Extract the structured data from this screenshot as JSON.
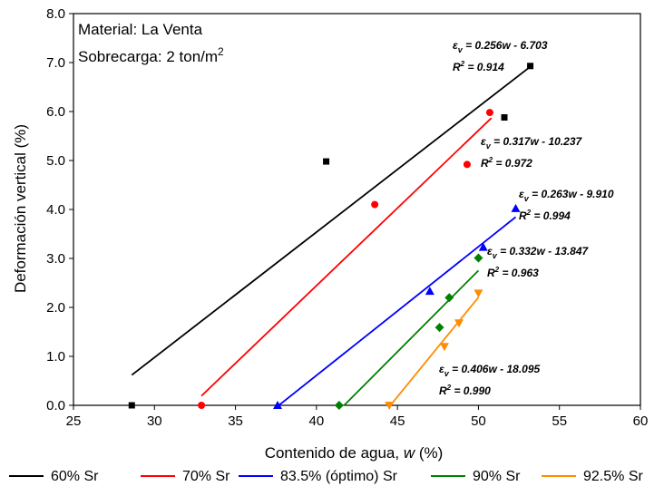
{
  "chart_data": {
    "type": "scatter",
    "xlabel_main": "Contenido de agua, ",
    "xlabel_var": "w",
    "xlabel_unit": " (%)",
    "ylabel": "Deformación vertical (%)",
    "xlim": [
      25,
      60
    ],
    "ylim": [
      0,
      8
    ],
    "x_ticks": [
      "25",
      "30",
      "35",
      "40",
      "45",
      "50",
      "55",
      "60"
    ],
    "y_ticks": [
      "0.0",
      "1.0",
      "2.0",
      "3.0",
      "4.0",
      "5.0",
      "6.0",
      "7.0",
      "8.0"
    ],
    "info_material": "Material: La Venta",
    "info_load_prefix": "Sobrecarga: 2 ton/m",
    "info_load_exp": "2",
    "legend_placement": "bottom",
    "series": [
      {
        "name": "60% Sr",
        "color": "#000000",
        "marker": "square",
        "points": [
          [
            28.6,
            0.0
          ],
          [
            40.6,
            4.98
          ],
          [
            51.6,
            5.88
          ],
          [
            53.2,
            6.93
          ]
        ],
        "fit": {
          "x0": 28.6,
          "x1": 53.2,
          "slope": 0.256,
          "intercept": -6.703
        },
        "equation": "ε",
        "eq_sub": "v",
        "eq_rest": " = 0.256w - 6.703",
        "r2_prefix": "R",
        "r2_sup": "2",
        "r2_rest": " = 0.914"
      },
      {
        "name": "70% Sr",
        "color": "#ff0000",
        "marker": "circle",
        "points": [
          [
            32.9,
            0.0
          ],
          [
            43.6,
            4.1
          ],
          [
            49.3,
            4.92
          ],
          [
            50.7,
            5.98
          ]
        ],
        "fit": {
          "x0": 32.9,
          "x1": 50.8,
          "slope": 0.317,
          "intercept": -10.237
        },
        "equation": "ε",
        "eq_sub": "v",
        "eq_rest": " = 0.317w - 10.237",
        "r2_prefix": "R",
        "r2_sup": "2",
        "r2_rest": " = 0.972"
      },
      {
        "name": "83.5% (óptimo) Sr",
        "color": "#0000ff",
        "marker": "triangle-up",
        "points": [
          [
            37.6,
            0.0
          ],
          [
            47.0,
            2.33
          ],
          [
            50.3,
            3.23
          ],
          [
            52.3,
            4.02
          ]
        ],
        "fit": {
          "x0": 37.7,
          "x1": 52.3,
          "slope": 0.263,
          "intercept": -9.91
        },
        "equation": "ε",
        "eq_sub": "v",
        "eq_rest": " = 0.263w - 9.910",
        "r2_prefix": "R",
        "r2_sup": "2",
        "r2_rest": " = 0.994"
      },
      {
        "name": "90% Sr",
        "color": "#008000",
        "marker": "diamond",
        "points": [
          [
            41.4,
            0.0
          ],
          [
            47.6,
            1.59
          ],
          [
            48.2,
            2.2
          ],
          [
            50.0,
            3.01
          ]
        ],
        "fit": {
          "x0": 41.7,
          "x1": 50.0,
          "slope": 0.332,
          "intercept": -13.847
        },
        "equation": "ε",
        "eq_sub": "v",
        "eq_rest": " = 0.332w - 13.847",
        "r2_prefix": "R",
        "r2_sup": "2",
        "r2_rest": " = 0.963"
      },
      {
        "name": "92.5% Sr",
        "color": "#ff8c00",
        "marker": "triangle-down",
        "points": [
          [
            44.5,
            0.0
          ],
          [
            47.9,
            1.2
          ],
          [
            48.8,
            1.68
          ],
          [
            50.0,
            2.29
          ]
        ],
        "fit": {
          "x0": 44.6,
          "x1": 50.0,
          "slope": 0.406,
          "intercept": -18.095
        },
        "equation": "ε",
        "eq_sub": "v",
        "eq_rest": " = 0.406w - 18.095",
        "r2_prefix": "R",
        "r2_sup": "2",
        "r2_rest": " = 0.990"
      }
    ]
  }
}
